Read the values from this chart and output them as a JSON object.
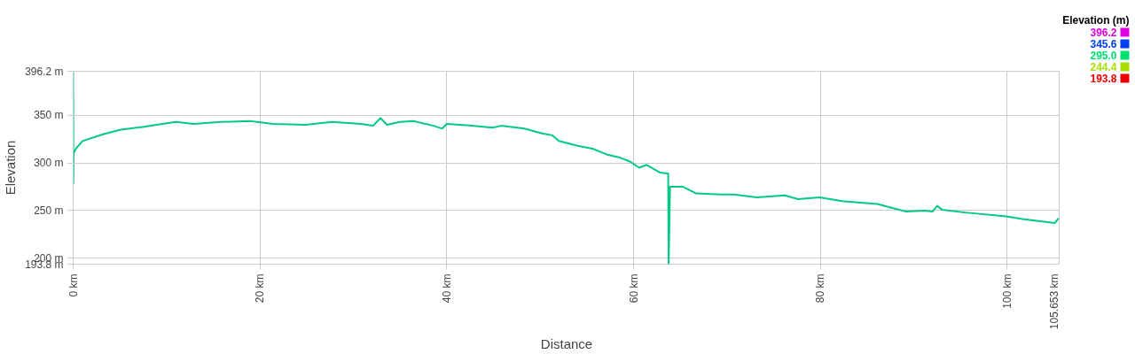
{
  "chart_data": {
    "type": "line",
    "xlabel": "Distance",
    "ylabel": "Elevation",
    "x": [
      0,
      0.02,
      0.05,
      0.3,
      1.0,
      3.2,
      5.1,
      7.6,
      8.9,
      11.0,
      12.9,
      15.8,
      18.9,
      21.4,
      24.9,
      27.7,
      30.8,
      32.1,
      32.9,
      33.6,
      35.0,
      36.4,
      38.6,
      39.5,
      40.0,
      42.7,
      44.9,
      45.8,
      48.3,
      50.2,
      51.3,
      52.0,
      54.0,
      55.6,
      57.1,
      58.4,
      59.5,
      60.6,
      61.4,
      62.8,
      63.7,
      63.75,
      63.9,
      65.3,
      66.7,
      69.4,
      70.7,
      73.2,
      76.2,
      77.6,
      79.9,
      82.3,
      86.1,
      87.6,
      89.2,
      91.1,
      92.0,
      92.5,
      93.0,
      95.5,
      99.9,
      101.8,
      105.1,
      105.5
    ],
    "series": [
      {
        "values": [
          396.2,
          278,
          310,
          315,
          323,
          330,
          335,
          338,
          340,
          343,
          341,
          343,
          344,
          341,
          340,
          343,
          341,
          339,
          347,
          340,
          343,
          344,
          339,
          336,
          341,
          339,
          337,
          339,
          336,
          331,
          329,
          323,
          318,
          315,
          309,
          306,
          302,
          295,
          298,
          290,
          289,
          193.8,
          275,
          275,
          268,
          267,
          267,
          264,
          266,
          262,
          264,
          260,
          257,
          253,
          249,
          250,
          249,
          255,
          251,
          248,
          244,
          241,
          237,
          242
        ]
      }
    ],
    "xlim": [
      0,
      105.653
    ],
    "ylim": [
      193.8,
      396.2
    ],
    "xticks": [
      {
        "value": 0,
        "label": "0 km"
      },
      {
        "value": 20,
        "label": "20 km"
      },
      {
        "value": 40,
        "label": "40 km"
      },
      {
        "value": 60,
        "label": "60 km"
      },
      {
        "value": 80,
        "label": "80 km"
      },
      {
        "value": 100,
        "label": "100 km"
      },
      {
        "value": 105.653,
        "label": "105.653 km"
      }
    ],
    "yticks": [
      {
        "value": 193.8,
        "label": "193.8 m"
      },
      {
        "value": 200,
        "label": "200 m"
      },
      {
        "value": 250,
        "label": "250 m"
      },
      {
        "value": 300,
        "label": "300 m"
      },
      {
        "value": 350,
        "label": "350 m"
      },
      {
        "value": 396.2,
        "label": "396.2 m"
      }
    ],
    "grid": true,
    "clabel": "Elevation (m)",
    "clim": [
      193.8,
      396.2
    ],
    "cticks": [
      396.2,
      345.6,
      {
        "value": 295,
        "label": "295.0"
      },
      244.4,
      193.8
    ],
    "colors": [
      "#e100e1",
      "#0040f0",
      "#00e070",
      "#aadd00",
      "#ee0000"
    ]
  }
}
